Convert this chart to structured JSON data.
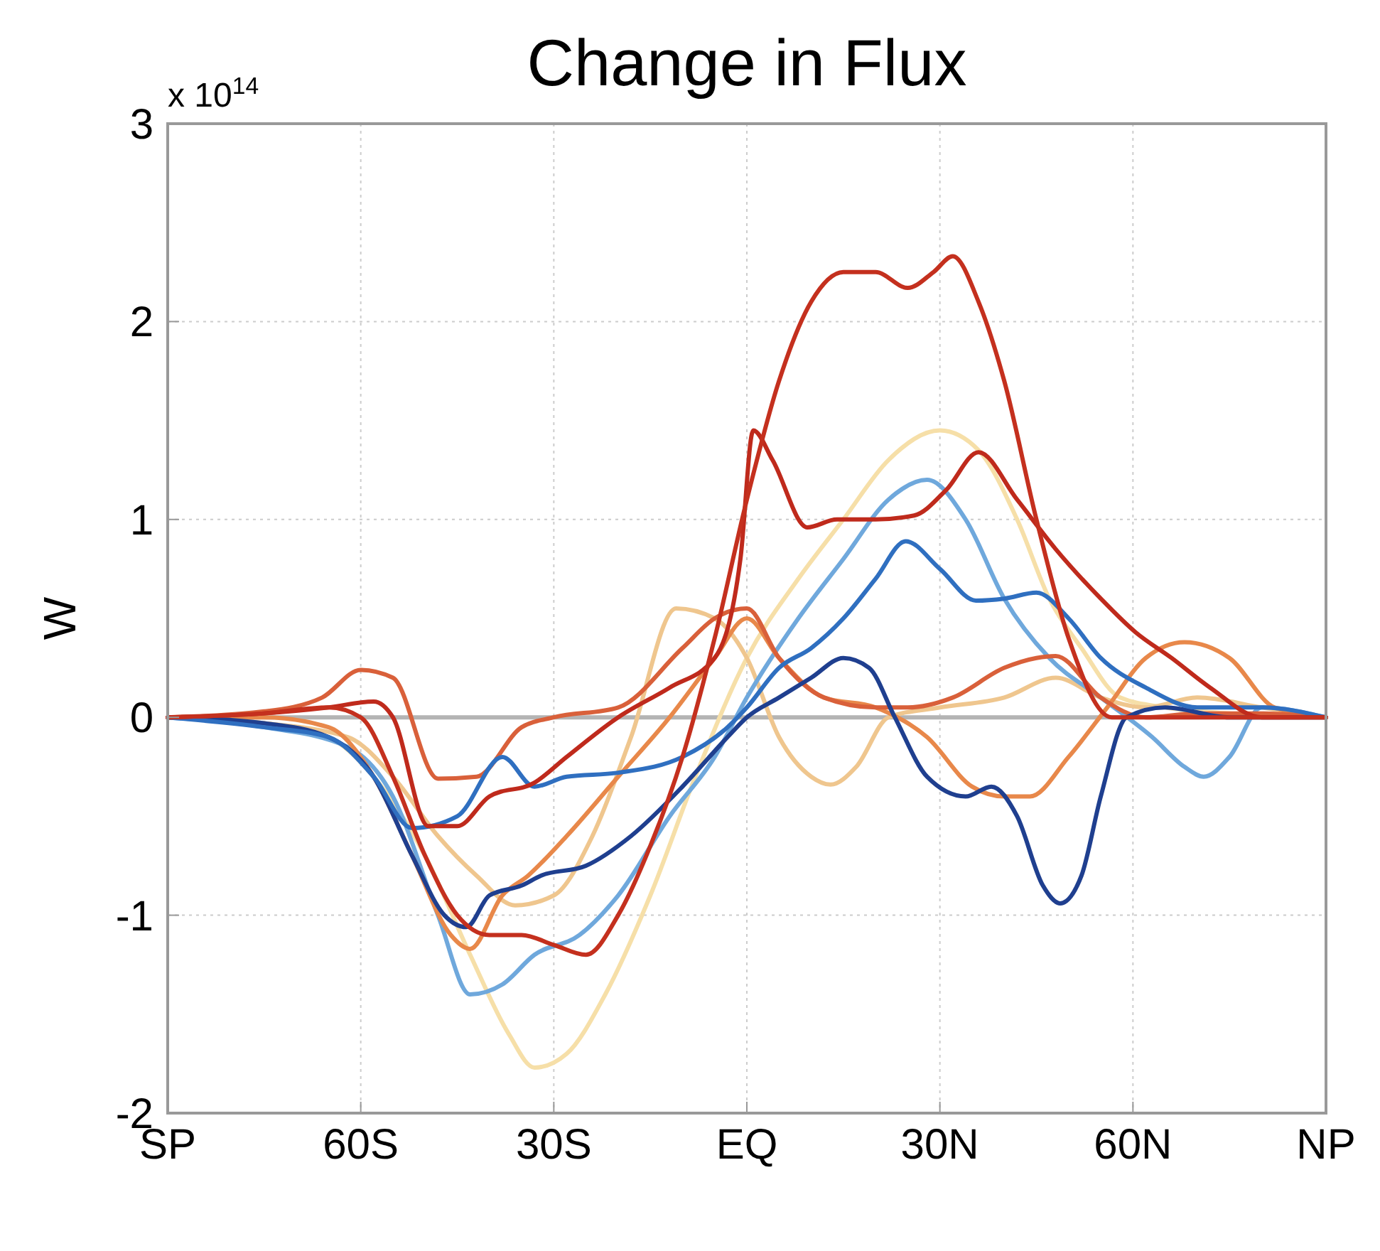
{
  "chart_data": {
    "type": "line",
    "title": "Change in Flux",
    "ylabel": "W",
    "annotations": [
      "x 10$^{14}$"
    ],
    "xlim": [
      -90,
      90
    ],
    "ylim": [
      -2,
      3
    ],
    "xticks": [
      {
        "value": -90,
        "label": "SP"
      },
      {
        "value": -60,
        "label": "60S"
      },
      {
        "value": -30,
        "label": "30S"
      },
      {
        "value": 0,
        "label": "EQ"
      },
      {
        "value": 30,
        "label": "30N"
      },
      {
        "value": 60,
        "label": "60N"
      },
      {
        "value": 90,
        "label": "NP"
      }
    ],
    "yticks": [
      -2,
      -1,
      0,
      1,
      2,
      3
    ],
    "grid": true,
    "ref_lines": [
      {
        "axis": "y",
        "value": 0,
        "color": "#b4b4b4"
      }
    ],
    "series": [
      {
        "color": "#f6dfa8",
        "x": [
          -90,
          -75,
          -65,
          -58,
          -50,
          -43,
          -37,
          -33,
          -28,
          -22,
          -15,
          -8,
          0,
          8,
          15,
          22,
          30,
          36,
          42,
          47,
          52,
          58,
          65,
          75,
          90
        ],
        "values": [
          0,
          -0.03,
          -0.1,
          -0.3,
          -0.7,
          -1.2,
          -1.6,
          -1.77,
          -1.7,
          -1.4,
          -0.9,
          -0.3,
          0.3,
          0.7,
          1.0,
          1.3,
          1.45,
          1.35,
          1.0,
          0.6,
          0.35,
          0.1,
          0.05,
          0.02,
          0
        ]
      },
      {
        "color": "#efc68e",
        "x": [
          -90,
          -75,
          -62,
          -55,
          -48,
          -42,
          -36,
          -30,
          -24,
          -18,
          -11,
          -5,
          0,
          5,
          10,
          13,
          17,
          22,
          30,
          40,
          48,
          55,
          62,
          70,
          80,
          90
        ],
        "values": [
          0,
          -0.03,
          -0.1,
          -0.3,
          -0.6,
          -0.8,
          -0.95,
          -0.9,
          -0.6,
          -0.1,
          0.55,
          0.5,
          0.3,
          -0.1,
          -0.3,
          -0.34,
          -0.25,
          0,
          0.05,
          0.1,
          0.2,
          0.1,
          0.05,
          0.1,
          0.05,
          0
        ]
      },
      {
        "color": "#6fa8dc",
        "x": [
          -90,
          -75,
          -62,
          -55,
          -48,
          -43,
          -38,
          -33,
          -26,
          -20,
          -12,
          -5,
          0,
          8,
          15,
          22,
          28,
          34,
          40,
          47,
          55,
          63,
          68,
          71,
          75,
          80,
          90
        ],
        "values": [
          0,
          -0.05,
          -0.15,
          -0.4,
          -1.0,
          -1.4,
          -1.35,
          -1.2,
          -1.1,
          -0.9,
          -0.5,
          -0.2,
          0.1,
          0.5,
          0.8,
          1.1,
          1.2,
          1.0,
          0.6,
          0.3,
          0.1,
          -0.1,
          -0.25,
          -0.3,
          -0.2,
          0.05,
          0
        ]
      },
      {
        "color": "#e8884a",
        "x": [
          -90,
          -75,
          -65,
          -58,
          -52,
          -46,
          -43,
          -38,
          -34,
          -28,
          -20,
          -12,
          -5,
          0,
          5,
          12,
          20,
          28,
          35,
          40,
          44,
          50,
          56,
          62,
          68,
          75,
          82,
          90
        ],
        "values": [
          0,
          0,
          -0.05,
          -0.3,
          -0.7,
          -1.1,
          -1.17,
          -0.9,
          -0.8,
          -0.6,
          -0.3,
          0,
          0.3,
          0.5,
          0.3,
          0.1,
          0.05,
          -0.1,
          -0.35,
          -0.4,
          -0.4,
          -0.2,
          0.05,
          0.3,
          0.38,
          0.3,
          0.05,
          0
        ]
      },
      {
        "color": "#d9603a",
        "x": [
          -90,
          -75,
          -66,
          -60,
          -55,
          -48,
          -42,
          -35,
          -30,
          -20,
          -10,
          -5,
          0,
          5,
          12,
          20,
          25,
          32,
          40,
          45,
          48,
          55,
          62,
          70,
          80,
          90
        ],
        "values": [
          0,
          0.03,
          0.1,
          0.24,
          0.2,
          -0.31,
          -0.3,
          -0.05,
          0,
          0.05,
          0.35,
          0.5,
          0.55,
          0.3,
          0.1,
          0.05,
          0.05,
          0.1,
          0.25,
          0.3,
          0.31,
          0.1,
          0,
          0.02,
          0.02,
          0
        ]
      },
      {
        "color": "#1f3f8f",
        "x": [
          -90,
          -75,
          -65,
          -58,
          -52,
          -47,
          -43.6,
          -40,
          -35,
          -32,
          -25,
          -18,
          -10,
          -3,
          0,
          5,
          10,
          15,
          19,
          23,
          28,
          34,
          38,
          42,
          46,
          48.7,
          52,
          55,
          59,
          65,
          75,
          90
        ],
        "values": [
          0,
          -0.03,
          -0.1,
          -0.3,
          -0.7,
          -1.0,
          -1.06,
          -0.9,
          -0.85,
          -0.8,
          -0.75,
          -0.6,
          -0.35,
          -0.1,
          0,
          0.1,
          0.2,
          0.3,
          0.25,
          0,
          -0.3,
          -0.4,
          -0.35,
          -0.5,
          -0.85,
          -0.94,
          -0.8,
          -0.4,
          0,
          0.05,
          0,
          0
        ]
      },
      {
        "color": "#2f6fc0",
        "x": [
          -90,
          -75,
          -65,
          -58,
          -52,
          -45,
          -38,
          -33,
          -28,
          -20,
          -10,
          -3,
          0,
          5,
          10,
          15,
          20,
          24.7,
          30,
          35.6,
          40,
          45,
          50,
          55,
          62,
          70,
          80,
          90
        ],
        "values": [
          0,
          -0.05,
          -0.1,
          -0.3,
          -0.56,
          -0.5,
          -0.2,
          -0.35,
          -0.3,
          -0.28,
          -0.2,
          -0.05,
          0.05,
          0.25,
          0.35,
          0.5,
          0.7,
          0.89,
          0.75,
          0.59,
          0.6,
          0.63,
          0.5,
          0.3,
          0.15,
          0.05,
          0.05,
          0
        ]
      },
      {
        "color": "#bf2a1c",
        "x": [
          -90,
          -75,
          -65,
          -58,
          -55,
          -49.5,
          -45,
          -40,
          -33,
          -28,
          -20,
          -12,
          -5,
          -1,
          1,
          4,
          9.4,
          14,
          20,
          26,
          31,
          36,
          42,
          48,
          55,
          60.4,
          66,
          72,
          80,
          90
        ],
        "values": [
          0,
          0.02,
          0.05,
          0.08,
          0,
          -0.55,
          -0.55,
          -0.4,
          -0.33,
          -0.2,
          0,
          0.15,
          0.3,
          0.8,
          1.45,
          1.3,
          0.96,
          1.0,
          1.0,
          1.02,
          1.15,
          1.34,
          1.1,
          0.85,
          0.6,
          0.43,
          0.3,
          0.15,
          0,
          0
        ]
      },
      {
        "color": "#c4301e",
        "x": [
          -90,
          -75,
          -65,
          -60,
          -55,
          -50,
          -45,
          -40,
          -35,
          -30,
          -25,
          -20,
          -15,
          -10,
          -5,
          0,
          5,
          10,
          15,
          20,
          25,
          29,
          32,
          36,
          40,
          45,
          50,
          56.7,
          62,
          70,
          80,
          90
        ],
        "values": [
          0,
          0.02,
          0.05,
          0,
          -0.3,
          -0.7,
          -1.0,
          -1.1,
          -1.1,
          -1.15,
          -1.2,
          -1.0,
          -0.65,
          -0.2,
          0.4,
          1.1,
          1.7,
          2.1,
          2.25,
          2.25,
          2.17,
          2.25,
          2.33,
          2.1,
          1.7,
          1.0,
          0.4,
          0,
          0,
          0,
          0,
          0
        ]
      }
    ]
  }
}
